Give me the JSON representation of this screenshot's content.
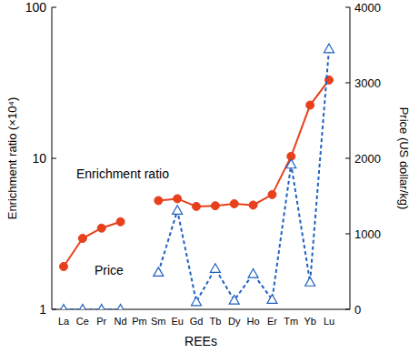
{
  "chart_data": {
    "type": "line",
    "x_label": "REEs",
    "y_label": "Enrichment ratio (×10⁴)",
    "y2_label": "Price (US dollar/kg)",
    "categories": [
      "La",
      "Ce",
      "Pr",
      "Nd",
      "Pm",
      "Sm",
      "Eu",
      "Gd",
      "Tb",
      "Dy",
      "Ho",
      "Er",
      "Tm",
      "Yb",
      "Lu"
    ],
    "series": [
      {
        "name": "Enrichment ratio",
        "color": "#e8401c",
        "marker": "circle",
        "line_style": "solid",
        "values": [
          1.92,
          2.95,
          3.45,
          3.8,
          null,
          5.25,
          5.4,
          4.8,
          4.85,
          5.0,
          4.9,
          5.75,
          10.3,
          22.5,
          33
        ]
      },
      {
        "name": "Price",
        "color": "#2060c0",
        "marker": "triangle",
        "line_style": "dotted",
        "axis": "y2",
        "values": [
          0,
          0,
          0,
          0,
          null,
          490,
          1310,
          100,
          540,
          120,
          470,
          130,
          1920,
          360,
          3450
        ]
      }
    ],
    "ylim": [
      1,
      100
    ],
    "yticks": [
      1,
      10,
      100
    ],
    "log": "y",
    "y2lim": [
      0,
      4000
    ],
    "y2ticks": [
      0,
      1000,
      2000,
      3000,
      4000
    ]
  }
}
